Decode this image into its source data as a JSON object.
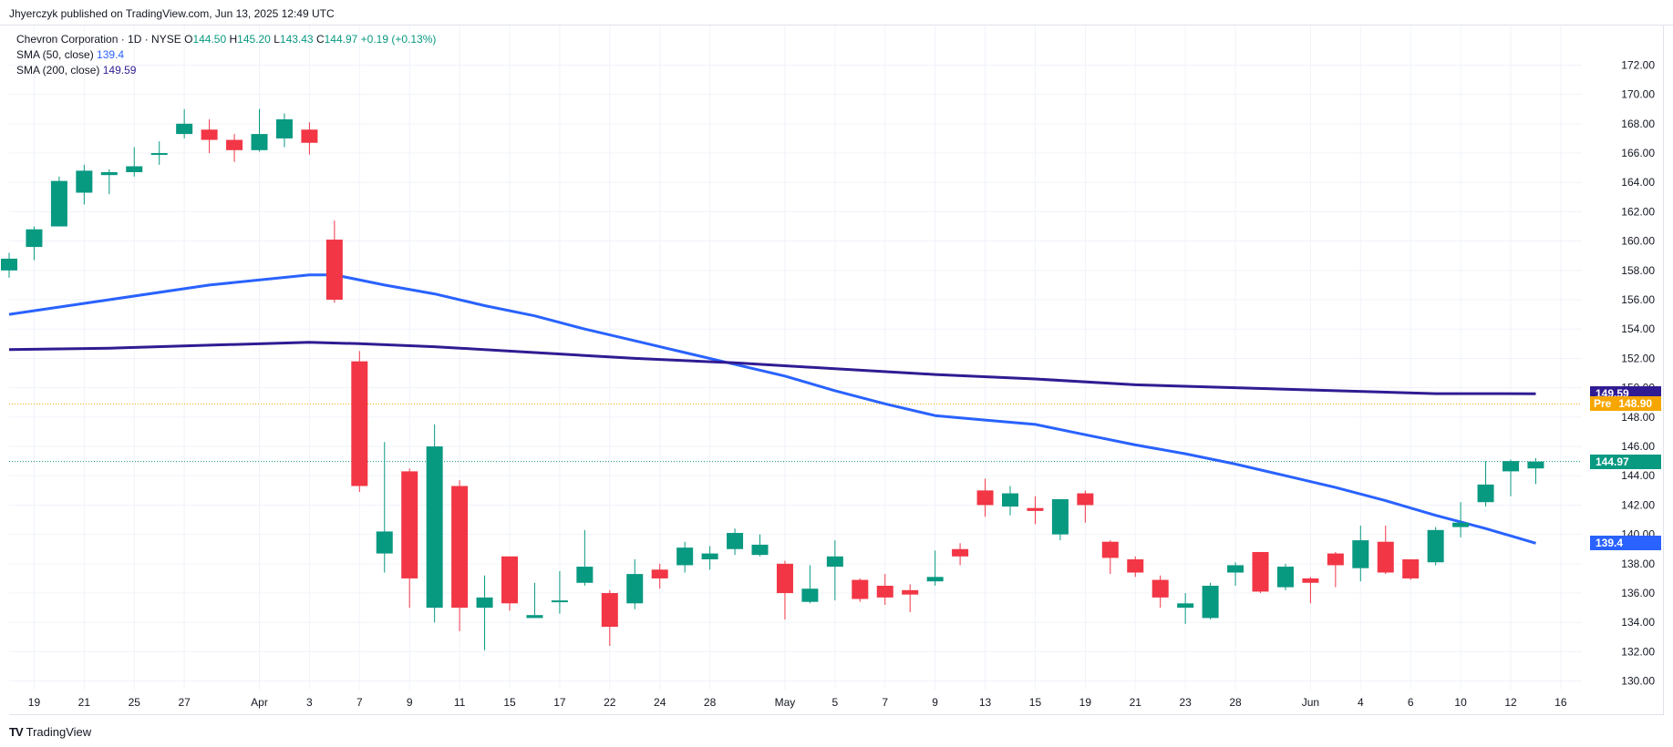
{
  "header": {
    "published": "Jhyerczyk published on TradingView.com, Jun 13, 2025 12:49 UTC"
  },
  "legend": {
    "symbol": "Chevron Corporation · 1D · NYSE",
    "open_label": "O",
    "open": "144.50",
    "high_label": "H",
    "high": "145.20",
    "low_label": "L",
    "low": "143.43",
    "close_label": "C",
    "close": "144.97",
    "change": "+0.19 (+0.13%)",
    "sma50_label": "SMA (50, close)",
    "sma50_value": "139.4",
    "sma200_label": "SMA (200, close)",
    "sma200_value": "149.59"
  },
  "price_tags": {
    "sma200": "149.59",
    "pre_label": "Pre",
    "pre_value": "148.90",
    "last": "144.97",
    "sma50": "139.4"
  },
  "colors": {
    "up": "#089981",
    "down": "#f23645",
    "sma50": "#2962ff",
    "sma200": "#311b92",
    "pre": "#f7a600",
    "grid": "#f0f3fa"
  },
  "logo": {
    "text": "TradingView"
  },
  "chart_data": {
    "type": "candlestick",
    "ylim": [
      128.4,
      173.4
    ],
    "y_ticks": [
      "130.00",
      "132.00",
      "134.00",
      "136.00",
      "138.00",
      "140.00",
      "142.00",
      "144.00",
      "146.00",
      "148.00",
      "150.00",
      "152.00",
      "154.00",
      "156.00",
      "158.00",
      "160.00",
      "162.00",
      "164.00",
      "166.00",
      "168.00",
      "170.00",
      "172.00"
    ],
    "x_ticks": [
      {
        "label": "19",
        "slot": 1
      },
      {
        "label": "21",
        "slot": 3
      },
      {
        "label": "25",
        "slot": 5
      },
      {
        "label": "27",
        "slot": 7
      },
      {
        "label": "Apr",
        "slot": 10
      },
      {
        "label": "3",
        "slot": 12
      },
      {
        "label": "7",
        "slot": 14
      },
      {
        "label": "9",
        "slot": 16
      },
      {
        "label": "11",
        "slot": 18
      },
      {
        "label": "15",
        "slot": 20
      },
      {
        "label": "17",
        "slot": 22
      },
      {
        "label": "22",
        "slot": 24
      },
      {
        "label": "24",
        "slot": 26
      },
      {
        "label": "28",
        "slot": 28
      },
      {
        "label": "May",
        "slot": 31
      },
      {
        "label": "5",
        "slot": 33
      },
      {
        "label": "7",
        "slot": 35
      },
      {
        "label": "9",
        "slot": 37
      },
      {
        "label": "13",
        "slot": 39
      },
      {
        "label": "15",
        "slot": 41
      },
      {
        "label": "19",
        "slot": 43
      },
      {
        "label": "21",
        "slot": 45
      },
      {
        "label": "23",
        "slot": 47
      },
      {
        "label": "28",
        "slot": 49
      },
      {
        "label": "Jun",
        "slot": 52
      },
      {
        "label": "4",
        "slot": 54
      },
      {
        "label": "6",
        "slot": 56
      },
      {
        "label": "10",
        "slot": 58
      },
      {
        "label": "12",
        "slot": 60
      },
      {
        "label": "16",
        "slot": 62
      }
    ],
    "candles": [
      {
        "o": 158.0,
        "h": 159.2,
        "l": 157.5,
        "c": 158.8
      },
      {
        "o": 159.6,
        "h": 161.0,
        "l": 158.7,
        "c": 160.8
      },
      {
        "o": 161.0,
        "h": 164.4,
        "l": 161.0,
        "c": 164.1
      },
      {
        "o": 163.3,
        "h": 165.2,
        "l": 162.5,
        "c": 164.8
      },
      {
        "o": 164.5,
        "h": 164.9,
        "l": 163.2,
        "c": 164.7
      },
      {
        "o": 164.7,
        "h": 166.4,
        "l": 164.4,
        "c": 165.1
      },
      {
        "o": 165.9,
        "h": 166.8,
        "l": 165.2,
        "c": 166.0
      },
      {
        "o": 167.3,
        "h": 169.0,
        "l": 167.0,
        "c": 168.0
      },
      {
        "o": 167.6,
        "h": 168.3,
        "l": 166.0,
        "c": 166.9
      },
      {
        "o": 166.9,
        "h": 167.3,
        "l": 165.4,
        "c": 166.2
      },
      {
        "o": 166.2,
        "h": 169.0,
        "l": 166.1,
        "c": 167.3
      },
      {
        "o": 167.0,
        "h": 168.7,
        "l": 166.4,
        "c": 168.3
      },
      {
        "o": 167.6,
        "h": 168.1,
        "l": 165.9,
        "c": 166.7
      },
      {
        "o": 160.1,
        "h": 161.4,
        "l": 155.8,
        "c": 156.0
      },
      {
        "o": 151.8,
        "h": 152.5,
        "l": 142.9,
        "c": 143.3
      },
      {
        "o": 138.7,
        "h": 146.3,
        "l": 137.4,
        "c": 140.2
      },
      {
        "o": 144.3,
        "h": 144.5,
        "l": 135.0,
        "c": 137.0
      },
      {
        "o": 135.0,
        "h": 147.5,
        "l": 134.0,
        "c": 146.0
      },
      {
        "o": 143.3,
        "h": 143.7,
        "l": 133.4,
        "c": 135.0
      },
      {
        "o": 135.0,
        "h": 137.2,
        "l": 132.1,
        "c": 135.7
      },
      {
        "o": 138.5,
        "h": 138.5,
        "l": 134.8,
        "c": 135.3
      },
      {
        "o": 134.3,
        "h": 136.7,
        "l": 134.3,
        "c": 134.5
      },
      {
        "o": 135.5,
        "h": 137.5,
        "l": 134.6,
        "c": 135.5
      },
      {
        "o": 136.7,
        "h": 140.3,
        "l": 136.5,
        "c": 137.8
      },
      {
        "o": 136.0,
        "h": 136.2,
        "l": 132.4,
        "c": 133.7
      },
      {
        "o": 135.3,
        "h": 138.3,
        "l": 134.9,
        "c": 137.3
      },
      {
        "o": 137.6,
        "h": 138.0,
        "l": 136.3,
        "c": 137.0
      },
      {
        "o": 137.9,
        "h": 139.5,
        "l": 137.4,
        "c": 139.1
      },
      {
        "o": 138.3,
        "h": 139.2,
        "l": 137.6,
        "c": 138.7
      },
      {
        "o": 139.0,
        "h": 140.4,
        "l": 138.6,
        "c": 140.1
      },
      {
        "o": 138.6,
        "h": 140.0,
        "l": 138.5,
        "c": 139.3
      },
      {
        "o": 138.0,
        "h": 138.2,
        "l": 134.2,
        "c": 136.0
      },
      {
        "o": 135.4,
        "h": 137.9,
        "l": 135.3,
        "c": 136.3
      },
      {
        "o": 137.8,
        "h": 139.6,
        "l": 135.5,
        "c": 138.5
      },
      {
        "o": 136.9,
        "h": 137.0,
        "l": 135.4,
        "c": 135.6
      },
      {
        "o": 136.5,
        "h": 137.3,
        "l": 135.2,
        "c": 135.7
      },
      {
        "o": 136.2,
        "h": 136.6,
        "l": 134.7,
        "c": 135.9
      },
      {
        "o": 136.8,
        "h": 138.9,
        "l": 136.5,
        "c": 137.1
      },
      {
        "o": 139.0,
        "h": 139.4,
        "l": 137.9,
        "c": 138.5
      },
      {
        "o": 143.0,
        "h": 143.8,
        "l": 141.2,
        "c": 142.0
      },
      {
        "o": 141.9,
        "h": 143.3,
        "l": 141.3,
        "c": 142.8
      },
      {
        "o": 141.8,
        "h": 142.6,
        "l": 140.7,
        "c": 141.6
      },
      {
        "o": 140.0,
        "h": 142.4,
        "l": 139.6,
        "c": 142.4
      },
      {
        "o": 142.8,
        "h": 143.0,
        "l": 140.8,
        "c": 142.0
      },
      {
        "o": 139.5,
        "h": 139.6,
        "l": 137.3,
        "c": 138.4
      },
      {
        "o": 138.3,
        "h": 138.5,
        "l": 137.1,
        "c": 137.4
      },
      {
        "o": 136.9,
        "h": 137.2,
        "l": 135.0,
        "c": 135.7
      },
      {
        "o": 135.0,
        "h": 136.0,
        "l": 133.9,
        "c": 135.3
      },
      {
        "o": 134.3,
        "h": 136.7,
        "l": 134.2,
        "c": 136.5
      },
      {
        "o": 137.4,
        "h": 138.1,
        "l": 136.5,
        "c": 137.9
      },
      {
        "o": 138.8,
        "h": 138.8,
        "l": 136.0,
        "c": 136.1
      },
      {
        "o": 136.4,
        "h": 138.0,
        "l": 136.2,
        "c": 137.8
      },
      {
        "o": 137.0,
        "h": 137.1,
        "l": 135.3,
        "c": 136.7
      },
      {
        "o": 138.7,
        "h": 138.8,
        "l": 136.4,
        "c": 137.9
      },
      {
        "o": 137.7,
        "h": 140.6,
        "l": 136.8,
        "c": 139.6
      },
      {
        "o": 139.5,
        "h": 140.6,
        "l": 137.3,
        "c": 137.4
      },
      {
        "o": 138.3,
        "h": 138.3,
        "l": 136.9,
        "c": 137.0
      },
      {
        "o": 138.1,
        "h": 140.5,
        "l": 137.9,
        "c": 140.3
      },
      {
        "o": 140.5,
        "h": 142.2,
        "l": 139.8,
        "c": 140.8
      },
      {
        "o": 142.2,
        "h": 145.0,
        "l": 141.9,
        "c": 143.4
      },
      {
        "o": 144.3,
        "h": 145.1,
        "l": 142.6,
        "c": 145.0
      },
      {
        "o": 144.5,
        "h": 145.2,
        "l": 143.43,
        "c": 144.97
      }
    ],
    "series": [
      {
        "name": "SMA (50, close)",
        "points": [
          [
            0,
            155.0
          ],
          [
            4,
            156.0
          ],
          [
            8,
            157.0
          ],
          [
            12,
            157.7
          ],
          [
            13,
            157.7
          ],
          [
            15,
            157.0
          ],
          [
            17,
            156.4
          ],
          [
            19,
            155.6
          ],
          [
            21,
            154.9
          ],
          [
            23,
            154.0
          ],
          [
            25,
            153.2
          ],
          [
            27,
            152.4
          ],
          [
            29,
            151.6
          ],
          [
            31,
            150.8
          ],
          [
            33,
            149.8
          ],
          [
            35,
            148.9
          ],
          [
            37,
            148.1
          ],
          [
            39,
            147.8
          ],
          [
            41,
            147.5
          ],
          [
            43,
            146.8
          ],
          [
            45,
            146.1
          ],
          [
            47,
            145.5
          ],
          [
            49,
            144.8
          ],
          [
            51,
            144.0
          ],
          [
            53,
            143.2
          ],
          [
            55,
            142.3
          ],
          [
            57,
            141.3
          ],
          [
            59,
            140.4
          ],
          [
            61,
            139.4
          ]
        ]
      },
      {
        "name": "SMA (200, close)",
        "points": [
          [
            0,
            152.6
          ],
          [
            4,
            152.7
          ],
          [
            8,
            152.9
          ],
          [
            12,
            153.1
          ],
          [
            14,
            153.0
          ],
          [
            17,
            152.8
          ],
          [
            21,
            152.4
          ],
          [
            25,
            152.0
          ],
          [
            29,
            151.7
          ],
          [
            33,
            151.3
          ],
          [
            37,
            150.9
          ],
          [
            41,
            150.6
          ],
          [
            45,
            150.2
          ],
          [
            49,
            150.0
          ],
          [
            53,
            149.8
          ],
          [
            57,
            149.6
          ],
          [
            61,
            149.59
          ]
        ]
      }
    ],
    "reference_lines": [
      {
        "name": "Pre",
        "value": 148.9
      },
      {
        "name": "Last",
        "value": 144.97
      }
    ]
  }
}
